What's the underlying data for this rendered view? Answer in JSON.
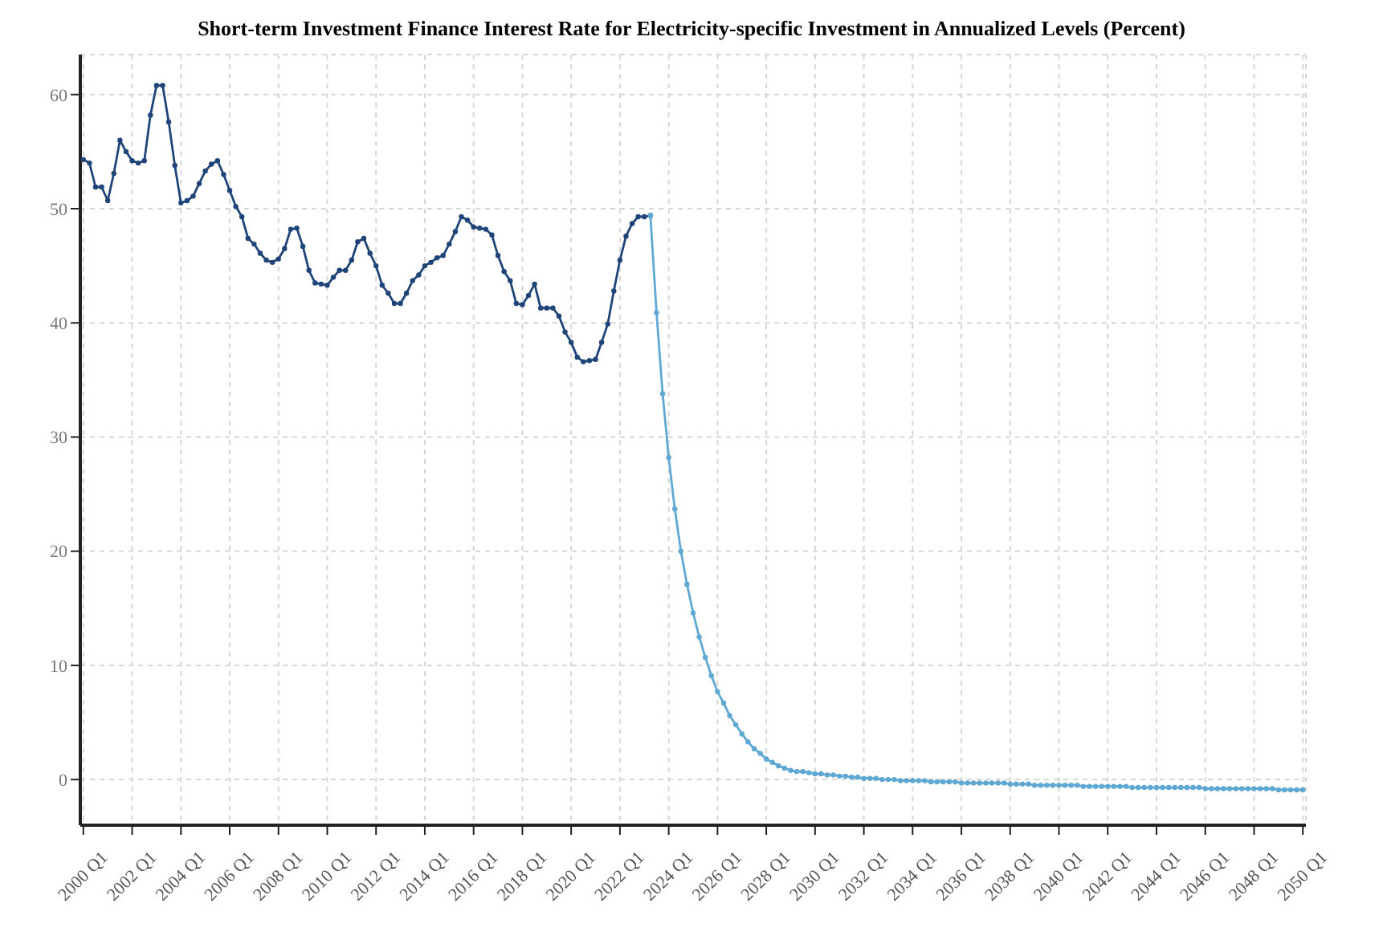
{
  "chart_data": {
    "type": "line",
    "title": "Short-term Investment Finance Interest Rate for Electricity-specific Investment in Annualized Levels (Percent)",
    "categories": [
      "2000 Q1",
      null,
      null,
      null,
      null,
      null,
      null,
      null,
      "2002 Q1",
      null,
      null,
      null,
      null,
      null,
      null,
      null,
      "2004 Q1",
      null,
      null,
      null,
      null,
      null,
      null,
      null,
      "2006 Q1",
      null,
      null,
      null,
      null,
      null,
      null,
      null,
      "2008 Q1",
      null,
      null,
      null,
      null,
      null,
      null,
      null,
      "2010 Q1",
      null,
      null,
      null,
      null,
      null,
      null,
      null,
      "2012 Q1",
      null,
      null,
      null,
      null,
      null,
      null,
      null,
      "2014 Q1",
      null,
      null,
      null,
      null,
      null,
      null,
      null,
      "2016 Q1",
      null,
      null,
      null,
      null,
      null,
      null,
      null,
      "2018 Q1",
      null,
      null,
      null,
      null,
      null,
      null,
      null,
      "2020 Q1",
      null,
      null,
      null,
      null,
      null,
      null,
      null,
      "2022 Q1",
      null,
      null,
      null,
      null,
      null,
      null,
      null,
      "2024 Q1",
      null,
      null,
      null,
      null,
      null,
      null,
      null,
      "2026 Q1",
      null,
      null,
      null,
      null,
      null,
      null,
      null,
      "2028 Q1",
      null,
      null,
      null,
      null,
      null,
      null,
      null,
      "2030 Q1",
      null,
      null,
      null,
      null,
      null,
      null,
      null,
      "2032 Q1",
      null,
      null,
      null,
      null,
      null,
      null,
      null,
      "2034 Q1",
      null,
      null,
      null,
      null,
      null,
      null,
      null,
      "2036 Q1",
      null,
      null,
      null,
      null,
      null,
      null,
      null,
      "2038 Q1",
      null,
      null,
      null,
      null,
      null,
      null,
      null,
      "2040 Q1",
      null,
      null,
      null,
      null,
      null,
      null,
      null,
      "2042 Q1",
      null,
      null,
      null,
      null,
      null,
      null,
      null,
      "2044 Q1",
      null,
      null,
      null,
      null,
      null,
      null,
      null,
      "2046 Q1",
      null,
      null,
      null,
      null,
      null,
      null,
      null,
      "2048 Q1",
      null,
      null,
      null,
      null,
      null,
      null,
      null,
      "2050 Q1"
    ],
    "series": [
      {
        "color": "#1f4478",
        "values": [
          54.3,
          54.0,
          51.9,
          51.9,
          50.7,
          53.1,
          56.0,
          55.0,
          54.2,
          54.0,
          54.2,
          58.2,
          60.8,
          60.8,
          57.6,
          53.8,
          50.5,
          50.7,
          51.1,
          52.2,
          53.3,
          53.9,
          54.2,
          53.0,
          51.6,
          50.2,
          49.3,
          47.4,
          46.9,
          46.1,
          45.5,
          45.3,
          45.6,
          46.5,
          48.2,
          48.3,
          46.7,
          44.6,
          43.5,
          43.4,
          43.3,
          44.0,
          44.6,
          44.6,
          45.5,
          47.1,
          47.4,
          46.1,
          45.0,
          43.3,
          42.6,
          41.7,
          41.7,
          42.6,
          43.7,
          44.2,
          45.0,
          45.3,
          45.7,
          45.9,
          46.9,
          48.0,
          49.3,
          49.0,
          48.4,
          48.3,
          48.2,
          47.7,
          45.9,
          44.5,
          43.7,
          41.7,
          41.6,
          42.4,
          43.4,
          41.3,
          41.3,
          41.3,
          40.6,
          39.2,
          38.3,
          37.0,
          36.6,
          36.7,
          36.8,
          38.3,
          39.9,
          42.8,
          45.5,
          47.6,
          48.7,
          49.3,
          49.3,
          49.4,
          null,
          null,
          null,
          null,
          null,
          null,
          null,
          null,
          null,
          null,
          null,
          null,
          null,
          null,
          null,
          null,
          null,
          null,
          null,
          null,
          null,
          null,
          null,
          null,
          null,
          null,
          null,
          null,
          null,
          null,
          null,
          null,
          null,
          null,
          null,
          null,
          null,
          null,
          null,
          null,
          null,
          null,
          null,
          null,
          null,
          null,
          null,
          null,
          null,
          null,
          null,
          null,
          null,
          null,
          null,
          null,
          null,
          null,
          null,
          null,
          null,
          null,
          null,
          null,
          null,
          null,
          null,
          null,
          null,
          null,
          null,
          null,
          null,
          null,
          null,
          null,
          null,
          null,
          null,
          null,
          null,
          null,
          null,
          null,
          null,
          null,
          null,
          null,
          null,
          null,
          null,
          null,
          null,
          null,
          null,
          null,
          null,
          null,
          null,
          null,
          null,
          null,
          null,
          null,
          null,
          null,
          null
        ]
      },
      {
        "color": "#5fa8d3",
        "values": [
          null,
          null,
          null,
          null,
          null,
          null,
          null,
          null,
          null,
          null,
          null,
          null,
          null,
          null,
          null,
          null,
          null,
          null,
          null,
          null,
          null,
          null,
          null,
          null,
          null,
          null,
          null,
          null,
          null,
          null,
          null,
          null,
          null,
          null,
          null,
          null,
          null,
          null,
          null,
          null,
          null,
          null,
          null,
          null,
          null,
          null,
          null,
          null,
          null,
          null,
          null,
          null,
          null,
          null,
          null,
          null,
          null,
          null,
          null,
          null,
          null,
          null,
          null,
          null,
          null,
          null,
          null,
          null,
          null,
          null,
          null,
          null,
          null,
          null,
          null,
          null,
          null,
          null,
          null,
          null,
          null,
          null,
          null,
          null,
          null,
          null,
          null,
          null,
          null,
          null,
          null,
          null,
          null,
          49.4,
          40.9,
          33.8,
          28.2,
          23.7,
          20.0,
          17.1,
          14.6,
          12.5,
          10.7,
          9.1,
          7.7,
          6.7,
          5.6,
          4.8,
          4.0,
          3.3,
          2.7,
          2.3,
          1.8,
          1.5,
          1.2,
          1.0,
          0.8,
          0.7,
          0.7,
          0.6,
          0.5,
          0.5,
          0.4,
          0.4,
          0.3,
          0.3,
          0.2,
          0.2,
          0.1,
          0.1,
          0.1,
          0.0,
          0.0,
          0.0,
          -0.1,
          -0.1,
          -0.1,
          -0.1,
          -0.1,
          -0.2,
          -0.2,
          -0.2,
          -0.2,
          -0.2,
          -0.3,
          -0.3,
          -0.3,
          -0.3,
          -0.3,
          -0.3,
          -0.3,
          -0.3,
          -0.4,
          -0.4,
          -0.4,
          -0.4,
          -0.5,
          -0.5,
          -0.5,
          -0.5,
          -0.5,
          -0.5,
          -0.5,
          -0.5,
          -0.6,
          -0.6,
          -0.6,
          -0.6,
          -0.6,
          -0.6,
          -0.6,
          -0.6,
          -0.7,
          -0.7,
          -0.7,
          -0.7,
          -0.7,
          -0.7,
          -0.7,
          -0.7,
          -0.7,
          -0.7,
          -0.7,
          -0.7,
          -0.8,
          -0.8,
          -0.8,
          -0.8,
          -0.8,
          -0.8,
          -0.8,
          -0.8,
          -0.8,
          -0.8,
          -0.8,
          -0.8,
          -0.9,
          -0.9,
          -0.9,
          -0.9,
          -0.9
        ]
      }
    ],
    "ylim": [
      -4,
      63.5
    ],
    "yticks": [
      0,
      10,
      20,
      30,
      40,
      50,
      60
    ],
    "grid": true,
    "marker": "circle",
    "line_style": "solid"
  }
}
